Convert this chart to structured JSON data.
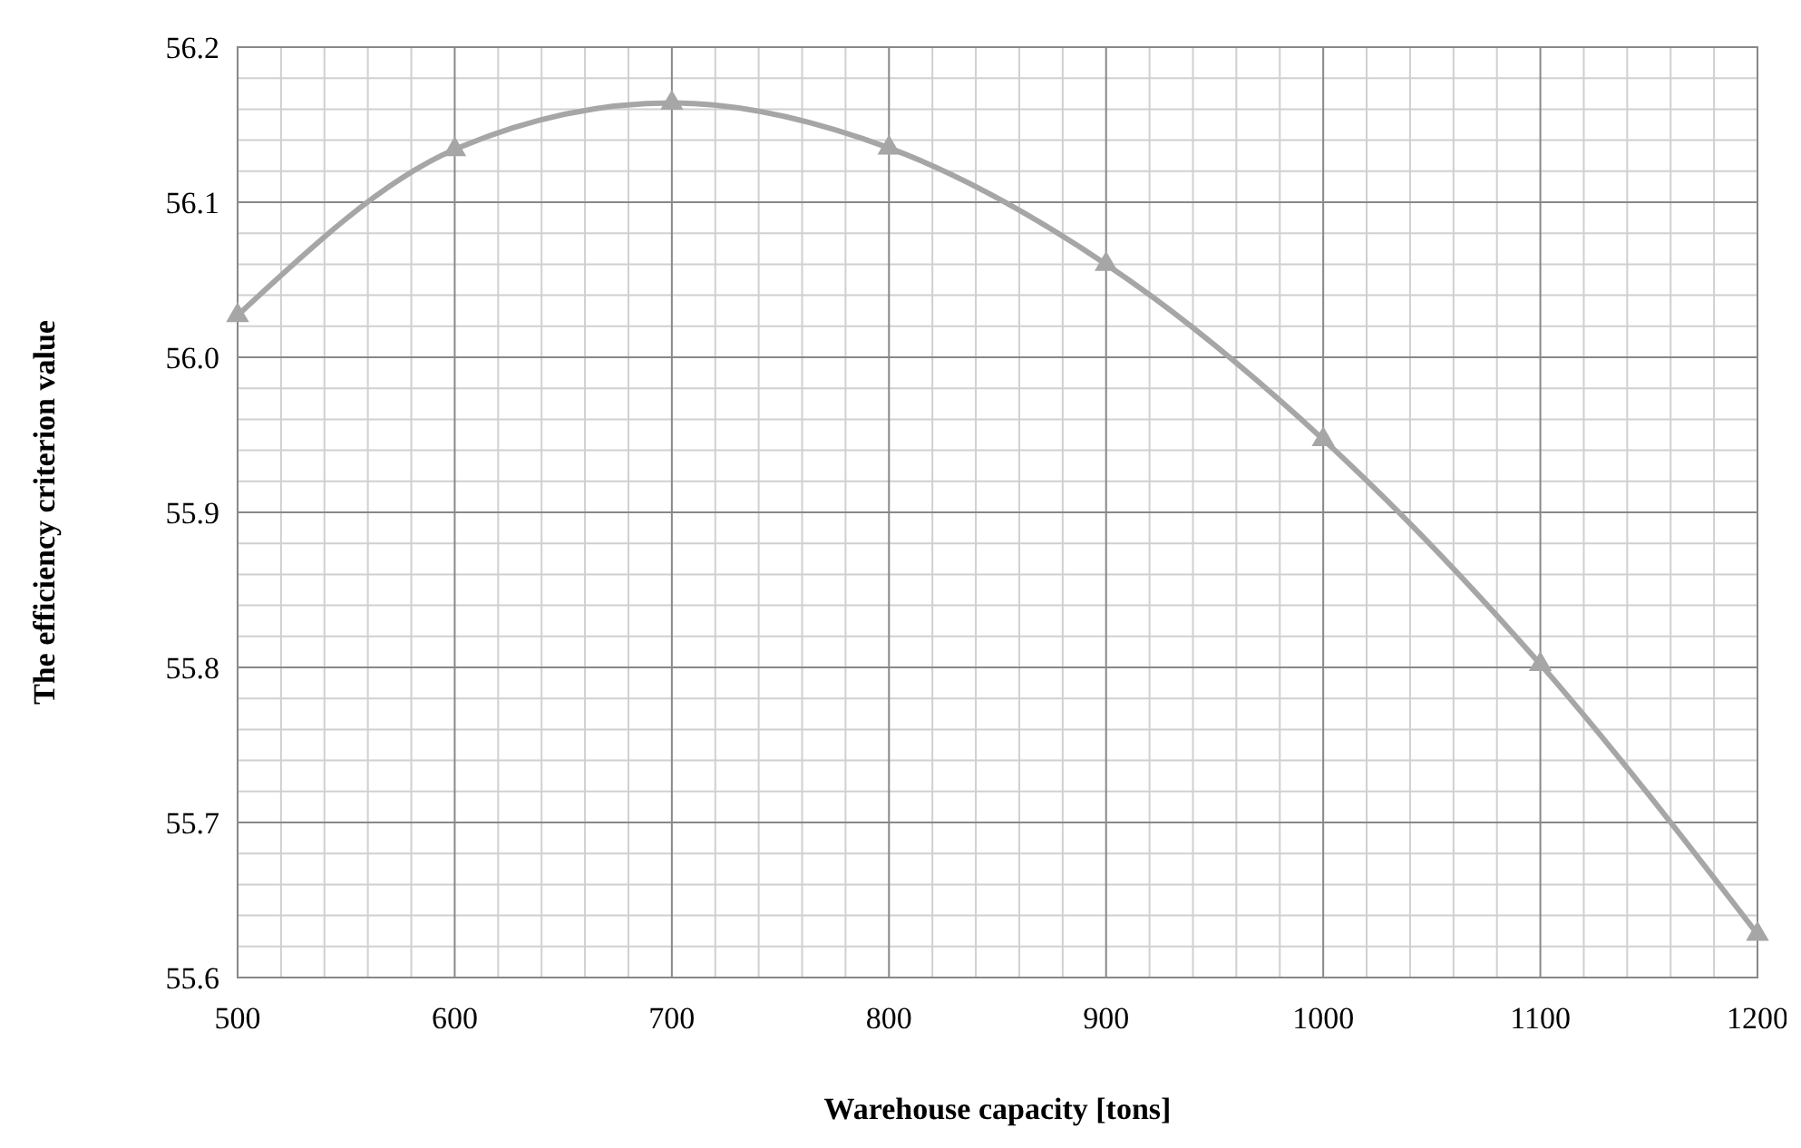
{
  "chart_data": {
    "type": "line",
    "xlabel": "Warehouse capacity [tons]",
    "ylabel": "The efficiency criterion value",
    "x": [
      500,
      600,
      700,
      800,
      900,
      1000,
      1100,
      1200
    ],
    "series": [
      {
        "color": "#a6a6a6",
        "values": [
          56.027,
          56.134,
          56.164,
          56.135,
          56.06,
          55.947,
          55.802,
          55.628
        ]
      }
    ],
    "xlim": [
      500,
      1200
    ],
    "xticks": [
      500,
      600,
      700,
      800,
      900,
      1000,
      1100,
      1200
    ],
    "ylim": [
      55.6,
      56.2
    ],
    "yticks": [
      55.6,
      55.7,
      55.8,
      55.9,
      {
        "value": 56,
        "label": "56.0"
      },
      56.1,
      56.2
    ],
    "grid": true,
    "marker": "triangle",
    "line_style": "solid"
  }
}
